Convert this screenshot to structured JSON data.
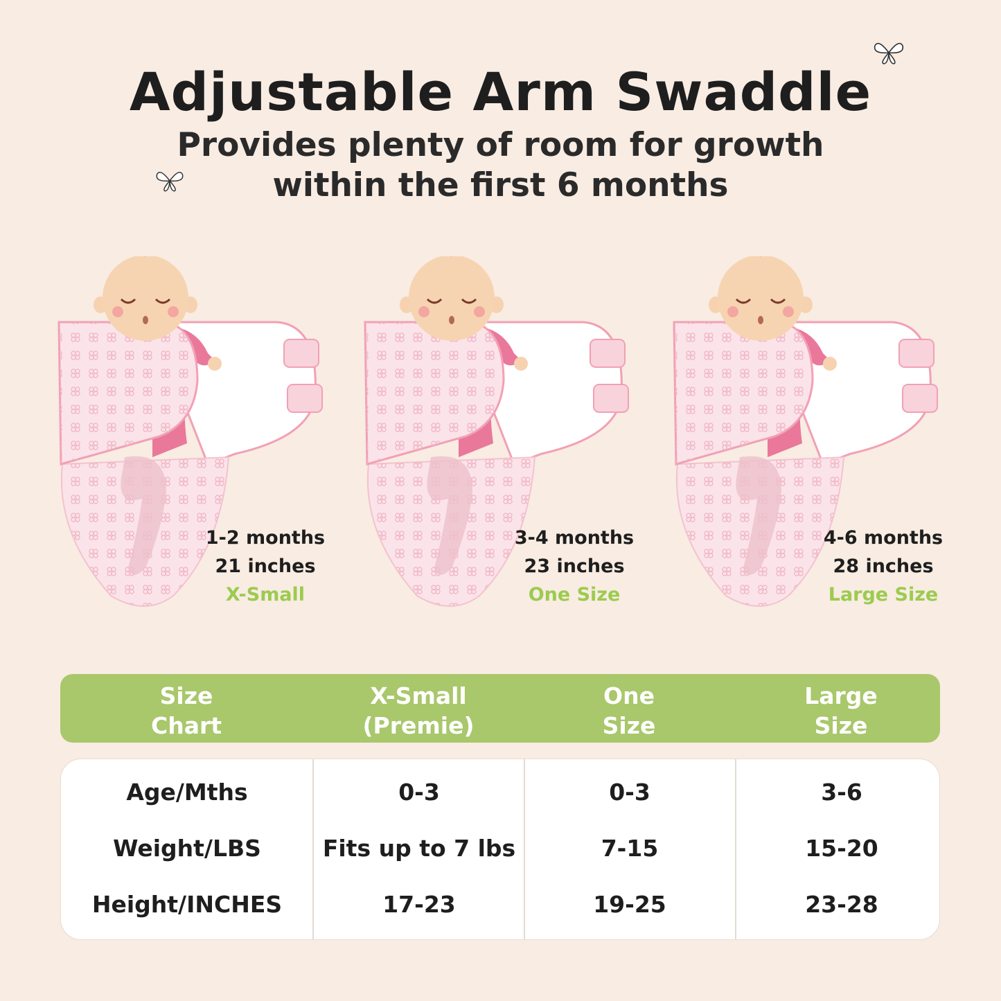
{
  "header": {
    "title": "Adjustable Arm Swaddle",
    "subtitle_line1": "Provides plenty of room for growth",
    "subtitle_line2": "within the first 6 months"
  },
  "colors": {
    "background": "#f8ece3",
    "accent_green": "#a9c76b",
    "label_green": "#9ccb4e",
    "swaddle_pink": "#f2a9b9",
    "sleeve_pink": "#e9789a"
  },
  "stages": [
    {
      "age": "1-2 months",
      "length": "21 inches",
      "size": "X-Small"
    },
    {
      "age": "3-4 months",
      "length": "23 inches",
      "size": "One Size"
    },
    {
      "age": "4-6 months",
      "length": "28 inches",
      "size": "Large Size"
    }
  ],
  "size_chart": {
    "headers": [
      [
        "Size",
        "Chart"
      ],
      [
        "X-Small",
        "(Premie)"
      ],
      [
        "One",
        "Size"
      ],
      [
        "Large",
        "Size"
      ]
    ],
    "rows": [
      {
        "label": "Age/Mths",
        "values": [
          "0-3",
          "0-3",
          "3-6"
        ]
      },
      {
        "label": "Weight/LBS",
        "values": [
          "Fits up to 7 lbs",
          "7-15",
          "15-20"
        ]
      },
      {
        "label": "Height/INCHES",
        "values": [
          "17-23",
          "19-25",
          "23-28"
        ]
      }
    ]
  }
}
